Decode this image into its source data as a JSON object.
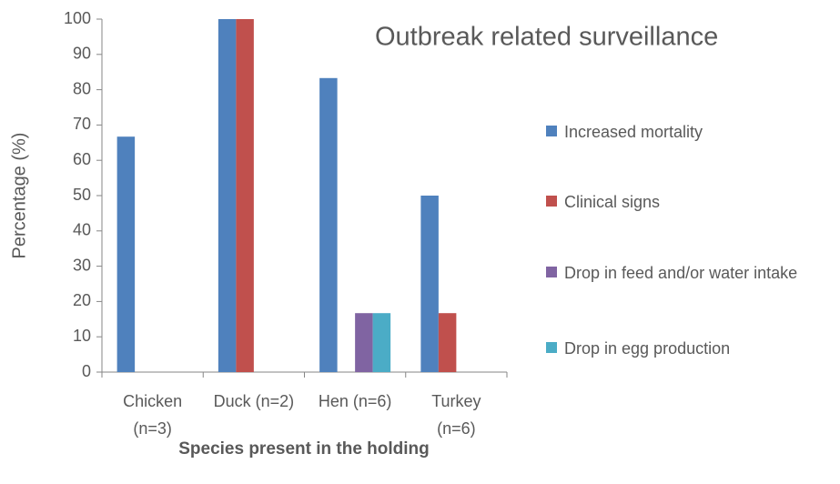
{
  "chart_data": {
    "type": "bar",
    "title": "Outbreak related surveillance",
    "x_label": "Species present in the holding",
    "y_label": "Percentage  (%)",
    "categories": [
      "Chicken (n=3)",
      "Duck (n=2)",
      "Hen (n=6)",
      "Turkey (n=6)"
    ],
    "series": [
      {
        "name": "Increased mortality",
        "color": "#4f81bd",
        "values": [
          66.7,
          100,
          83.3,
          50
        ]
      },
      {
        "name": "Clinical signs",
        "color": "#c0504d",
        "values": [
          0,
          100,
          0,
          16.7
        ]
      },
      {
        "name": "Drop in feed and/or water intake",
        "color": "#8064a2",
        "values": [
          0,
          0,
          16.7,
          0
        ]
      },
      {
        "name": "Drop in egg production",
        "color": "#4bacc6",
        "values": [
          0,
          0,
          16.7,
          0
        ]
      }
    ],
    "ylim": [
      0,
      100
    ],
    "yticks": [
      0,
      10,
      20,
      30,
      40,
      50,
      60,
      70,
      80,
      90,
      100
    ],
    "legend": "right"
  }
}
